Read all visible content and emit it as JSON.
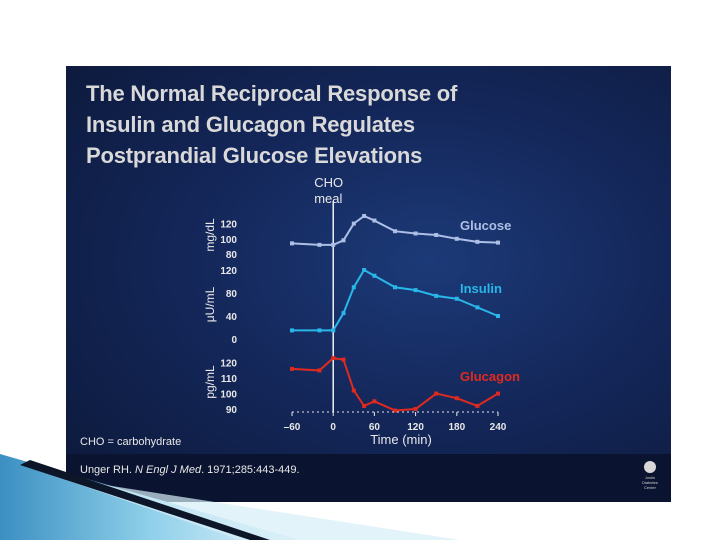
{
  "slide": {
    "title": "The Normal Reciprocal Response of\nInsulin and Glucagon Regulates\nPostprandial Glucose Elevations",
    "footnote": "CHO = carbohydrate",
    "citation": {
      "author": "Unger RH. ",
      "journal": "N Engl J Med",
      "details": ". 1971;285:443-449."
    },
    "logo_text": "Joslin\nDiabetes\nCenter"
  },
  "colors": {
    "glucose": "#aebfe6",
    "insulin": "#29b6e8",
    "glucagon": "#e02a1e",
    "background": "#14275a",
    "text": "#e8e8e8"
  },
  "chart_data": {
    "type": "line",
    "meal_marker": {
      "x": 0,
      "label": "CHO\nmeal"
    },
    "x": [
      -60,
      -20,
      0,
      15,
      30,
      45,
      60,
      90,
      120,
      150,
      180,
      210,
      240
    ],
    "xlabel": "Time (min)",
    "xticks": [
      -60,
      0,
      60,
      120,
      180,
      240
    ],
    "xtick_labels": [
      "–60",
      "0",
      "60",
      "120",
      "180",
      "240"
    ],
    "xlim": [
      -60,
      240
    ],
    "panels": [
      {
        "name": "Glucose",
        "ylabel": "mg/dL",
        "ylim": [
          80,
          130
        ],
        "yticks": [
          80,
          100,
          120
        ],
        "values": [
          94,
          92,
          92,
          98,
          120,
          130,
          124,
          110,
          107,
          105,
          100,
          96,
          95
        ]
      },
      {
        "name": "Insulin",
        "ylabel": "μU/mL",
        "ylim": [
          0,
          120
        ],
        "yticks": [
          0,
          40,
          80,
          120
        ],
        "values": [
          15,
          15,
          15,
          45,
          90,
          120,
          110,
          90,
          85,
          75,
          70,
          55,
          40
        ]
      },
      {
        "name": "Glucagon",
        "ylabel": "pg/mL",
        "ylim": [
          90,
          125
        ],
        "yticks": [
          90,
          100,
          110,
          120
        ],
        "values": [
          116,
          115,
          123,
          122,
          102,
          92,
          95,
          89,
          90,
          100,
          97,
          92,
          100
        ]
      }
    ]
  }
}
